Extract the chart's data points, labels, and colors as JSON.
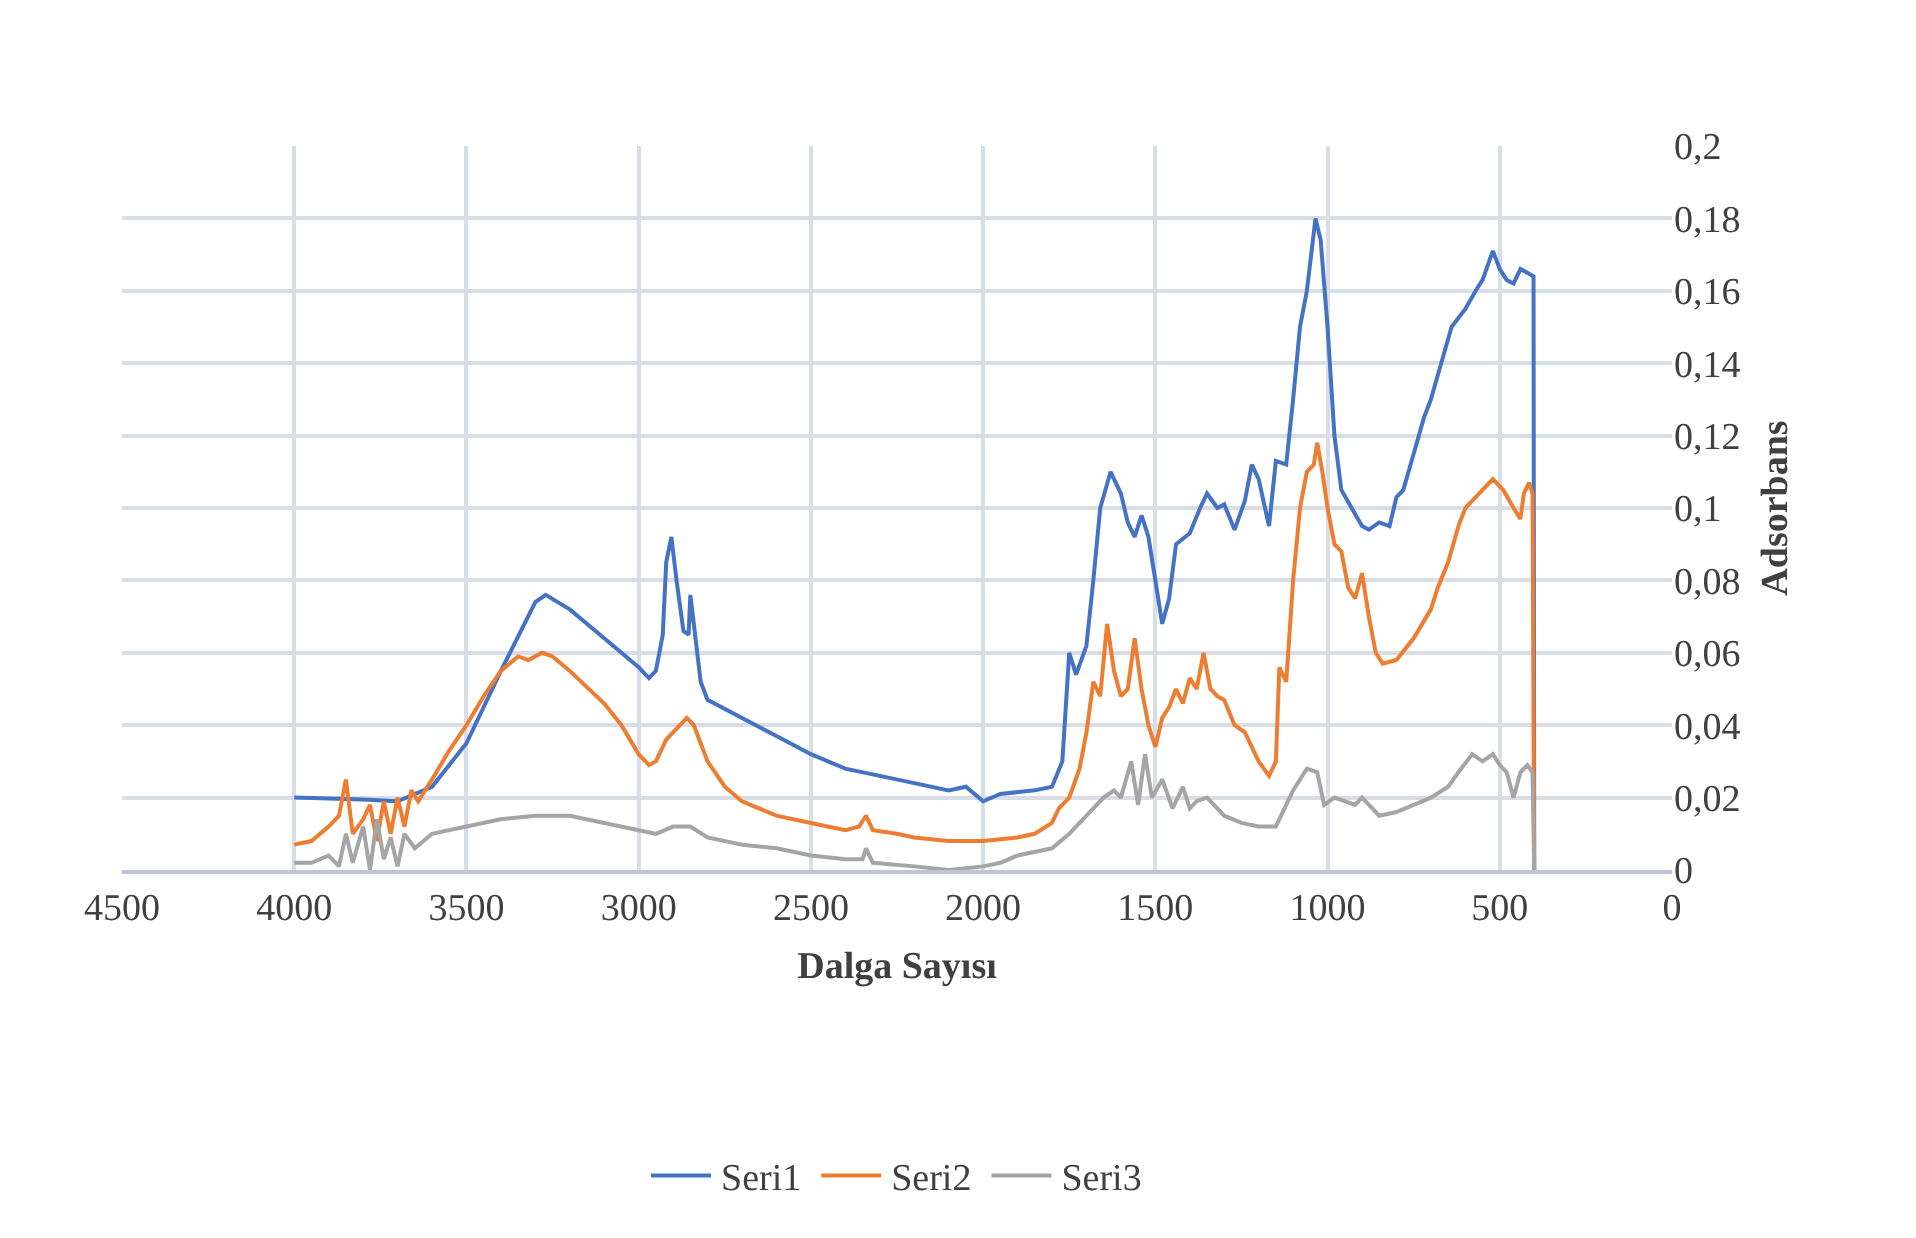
{
  "chart_data": {
    "type": "line",
    "xlabel": "Dalga Sayısı",
    "ylabel": "Adsorbans",
    "xlim": [
      4500,
      0
    ],
    "xticks": [
      4500,
      4000,
      3500,
      3000,
      2500,
      2000,
      1500,
      1000,
      500,
      0
    ],
    "ylim": [
      0,
      0.2
    ],
    "yticks": [
      {
        "value": 0,
        "label": "0"
      },
      {
        "value": 0.02,
        "label": "0,02"
      },
      {
        "value": 0.04,
        "label": "0,04"
      },
      {
        "value": 0.06,
        "label": "0,06"
      },
      {
        "value": 0.08,
        "label": "0,08"
      },
      {
        "value": 0.1,
        "label": "0,1"
      },
      {
        "value": 0.12,
        "label": "0,12"
      },
      {
        "value": 0.14,
        "label": "0,14"
      },
      {
        "value": 0.16,
        "label": "0,16"
      },
      {
        "value": 0.18,
        "label": "0,18"
      },
      {
        "value": 0.2,
        "label": "0,2"
      }
    ],
    "grid": true,
    "legend": "bottom",
    "marker": "none",
    "line_style": "solid",
    "series": [
      {
        "name": "Seri1",
        "color": "#4472c4",
        "x": [
          4000,
          3800,
          3700,
          3600,
          3500,
          3400,
          3300,
          3270,
          3200,
          3100,
          3000,
          2970,
          2950,
          2930,
          2920,
          2905,
          2890,
          2870,
          2855,
          2850,
          2840,
          2820,
          2800,
          2700,
          2600,
          2500,
          2400,
          2300,
          2200,
          2100,
          2050,
          2000,
          1950,
          1850,
          1800,
          1770,
          1750,
          1730,
          1700,
          1680,
          1660,
          1630,
          1600,
          1580,
          1560,
          1540,
          1520,
          1500,
          1480,
          1460,
          1440,
          1400,
          1370,
          1350,
          1320,
          1300,
          1270,
          1240,
          1220,
          1200,
          1170,
          1150,
          1120,
          1100,
          1080,
          1060,
          1035,
          1020,
          1000,
          980,
          960,
          930,
          900,
          880,
          850,
          820,
          800,
          780,
          750,
          720,
          700,
          670,
          640,
          600,
          570,
          550,
          520,
          500,
          480,
          460,
          440,
          420,
          402,
          400
        ],
        "values": [
          0.02,
          0.0195,
          0.019,
          0.023,
          0.035,
          0.055,
          0.074,
          0.076,
          0.072,
          0.064,
          0.056,
          0.053,
          0.055,
          0.065,
          0.085,
          0.092,
          0.08,
          0.066,
          0.065,
          0.076,
          0.068,
          0.052,
          0.047,
          0.042,
          0.037,
          0.032,
          0.028,
          0.026,
          0.024,
          0.022,
          0.023,
          0.019,
          0.021,
          0.022,
          0.023,
          0.03,
          0.06,
          0.054,
          0.062,
          0.08,
          0.1,
          0.11,
          0.104,
          0.096,
          0.092,
          0.098,
          0.092,
          0.08,
          0.068,
          0.075,
          0.09,
          0.093,
          0.1,
          0.104,
          0.1,
          0.101,
          0.094,
          0.102,
          0.112,
          0.108,
          0.095,
          0.113,
          0.112,
          0.13,
          0.15,
          0.16,
          0.18,
          0.174,
          0.15,
          0.12,
          0.105,
          0.1,
          0.095,
          0.094,
          0.096,
          0.095,
          0.103,
          0.105,
          0.115,
          0.125,
          0.13,
          0.14,
          0.15,
          0.155,
          0.16,
          0.163,
          0.171,
          0.166,
          0.163,
          0.162,
          0.166,
          0.165,
          0.164,
          0
        ]
      },
      {
        "name": "Seri2",
        "color": "#ed7d31",
        "x": [
          4000,
          3950,
          3900,
          3870,
          3850,
          3830,
          3800,
          3780,
          3760,
          3740,
          3720,
          3700,
          3680,
          3660,
          3640,
          3600,
          3550,
          3500,
          3450,
          3400,
          3350,
          3320,
          3280,
          3250,
          3200,
          3100,
          3050,
          3000,
          2970,
          2950,
          2920,
          2880,
          2860,
          2840,
          2800,
          2750,
          2700,
          2600,
          2500,
          2400,
          2360,
          2340,
          2320,
          2250,
          2200,
          2100,
          2000,
          1900,
          1850,
          1800,
          1780,
          1750,
          1720,
          1700,
          1680,
          1660,
          1640,
          1620,
          1600,
          1580,
          1560,
          1540,
          1520,
          1500,
          1480,
          1460,
          1440,
          1420,
          1400,
          1380,
          1360,
          1340,
          1320,
          1300,
          1270,
          1240,
          1200,
          1170,
          1150,
          1140,
          1120,
          1100,
          1080,
          1060,
          1040,
          1030,
          1015,
          1000,
          980,
          960,
          940,
          920,
          900,
          880,
          860,
          840,
          800,
          750,
          700,
          680,
          650,
          620,
          600,
          550,
          520,
          490,
          460,
          440,
          430,
          415,
          405,
          400
        ],
        "values": [
          0.007,
          0.008,
          0.012,
          0.015,
          0.025,
          0.01,
          0.014,
          0.018,
          0.008,
          0.019,
          0.01,
          0.02,
          0.012,
          0.022,
          0.019,
          0.025,
          0.033,
          0.04,
          0.048,
          0.055,
          0.059,
          0.058,
          0.06,
          0.059,
          0.055,
          0.046,
          0.04,
          0.032,
          0.029,
          0.03,
          0.036,
          0.04,
          0.042,
          0.04,
          0.03,
          0.023,
          0.019,
          0.015,
          0.013,
          0.011,
          0.012,
          0.015,
          0.011,
          0.01,
          0.009,
          0.008,
          0.008,
          0.009,
          0.01,
          0.013,
          0.017,
          0.02,
          0.028,
          0.038,
          0.052,
          0.048,
          0.068,
          0.055,
          0.048,
          0.05,
          0.064,
          0.05,
          0.04,
          0.034,
          0.042,
          0.045,
          0.05,
          0.046,
          0.053,
          0.05,
          0.06,
          0.05,
          0.048,
          0.047,
          0.04,
          0.038,
          0.03,
          0.026,
          0.03,
          0.056,
          0.052,
          0.08,
          0.1,
          0.11,
          0.112,
          0.118,
          0.11,
          0.1,
          0.09,
          0.088,
          0.078,
          0.075,
          0.082,
          0.07,
          0.06,
          0.057,
          0.058,
          0.064,
          0.072,
          0.078,
          0.085,
          0.095,
          0.1,
          0.105,
          0.108,
          0.105,
          0.1,
          0.097,
          0.104,
          0.107,
          0.104,
          0
        ]
      },
      {
        "name": "Seri3",
        "color": "#a5a5a5",
        "x": [
          4000,
          3950,
          3900,
          3870,
          3850,
          3830,
          3800,
          3780,
          3760,
          3740,
          3720,
          3700,
          3680,
          3650,
          3600,
          3500,
          3400,
          3300,
          3200,
          3100,
          3000,
          2950,
          2900,
          2850,
          2800,
          2700,
          2600,
          2500,
          2400,
          2350,
          2340,
          2320,
          2200,
          2100,
          2000,
          1950,
          1900,
          1800,
          1750,
          1700,
          1650,
          1620,
          1600,
          1570,
          1550,
          1530,
          1510,
          1480,
          1450,
          1420,
          1400,
          1380,
          1350,
          1300,
          1250,
          1200,
          1150,
          1120,
          1100,
          1060,
          1030,
          1010,
          980,
          950,
          920,
          900,
          870,
          850,
          800,
          750,
          700,
          650,
          620,
          580,
          550,
          520,
          500,
          480,
          460,
          440,
          420,
          405,
          400
        ],
        "values": [
          0.002,
          0.002,
          0.004,
          0.001,
          0.01,
          0.002,
          0.012,
          0,
          0.014,
          0.003,
          0.009,
          0.001,
          0.01,
          0.006,
          0.01,
          0.012,
          0.014,
          0.015,
          0.015,
          0.013,
          0.011,
          0.01,
          0.012,
          0.012,
          0.009,
          0.007,
          0.006,
          0.004,
          0.003,
          0.003,
          0.006,
          0.002,
          0.001,
          0,
          0.001,
          0.002,
          0.004,
          0.006,
          0.01,
          0.015,
          0.02,
          0.022,
          0.02,
          0.03,
          0.018,
          0.032,
          0.02,
          0.025,
          0.017,
          0.023,
          0.017,
          0.019,
          0.02,
          0.015,
          0.013,
          0.012,
          0.012,
          0.018,
          0.022,
          0.028,
          0.027,
          0.018,
          0.02,
          0.019,
          0.018,
          0.02,
          0.017,
          0.015,
          0.016,
          0.018,
          0.02,
          0.023,
          0.027,
          0.032,
          0.03,
          0.032,
          0.029,
          0.027,
          0.02,
          0.027,
          0.029,
          0.027,
          0
        ]
      }
    ]
  }
}
